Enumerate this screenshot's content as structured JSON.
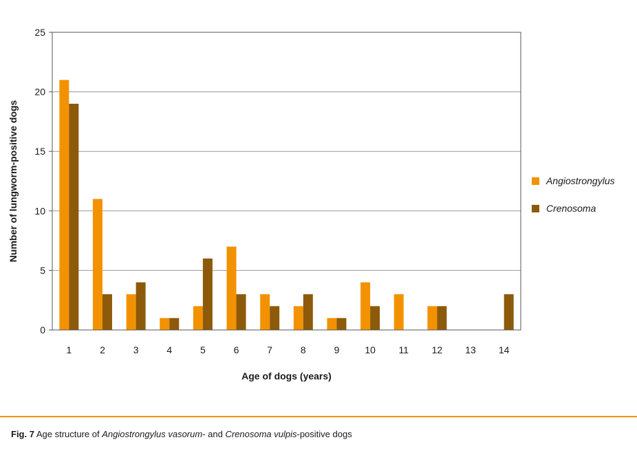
{
  "chart_data": {
    "type": "bar",
    "categories": [
      "1",
      "2",
      "3",
      "4",
      "5",
      "6",
      "7",
      "8",
      "9",
      "10",
      "11",
      "12",
      "13",
      "14"
    ],
    "series": [
      {
        "name": "Angiostrongylus",
        "color": "#f39200",
        "values": [
          21,
          11,
          3,
          1,
          2,
          7,
          3,
          2,
          1,
          4,
          3,
          2,
          0,
          0
        ]
      },
      {
        "name": "Crenosoma",
        "color": "#8c5a0a",
        "values": [
          19,
          3,
          4,
          1,
          6,
          3,
          2,
          3,
          1,
          2,
          0,
          2,
          0,
          3
        ]
      }
    ],
    "xlabel": "Age of dogs (years)",
    "ylabel": "Number of lungworm-positive dogs",
    "ylim": [
      0,
      25
    ],
    "yticks": [
      "0",
      "5",
      "10",
      "15",
      "20",
      "25"
    ],
    "grid": true,
    "legend_position": "right"
  },
  "caption": {
    "fig_label": "Fig. 7",
    "text_1": " Age structure of ",
    "species_1": "Angiostrongylus vasorum",
    "text_2": "- and ",
    "species_2": "Crenosoma vulpis",
    "text_3": "-positive dogs"
  },
  "colors": {
    "accent": "#f39200",
    "grid": "#9a9a9a",
    "frame": "#555555"
  }
}
